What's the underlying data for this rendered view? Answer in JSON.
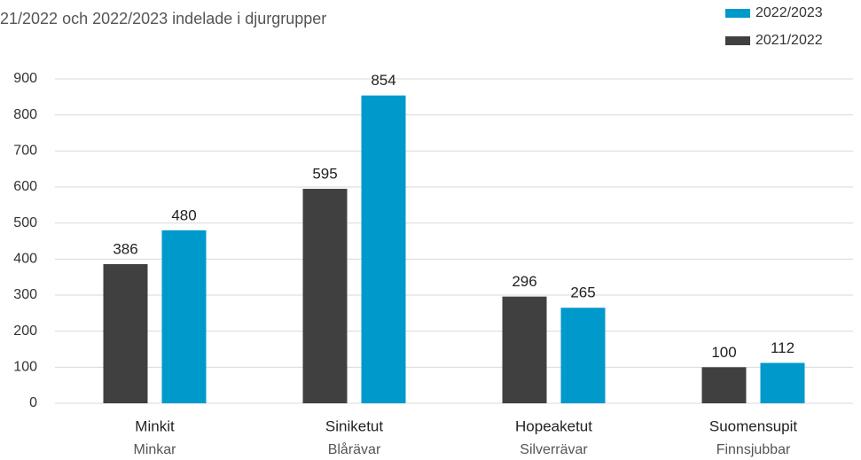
{
  "chart_data": {
    "type": "bar",
    "subtitle": "21/2022 och 2022/2023 indelade i djurgrupper",
    "categories": [
      "Minkit",
      "Siniketut",
      "Hopeaketut",
      "Suomensupit"
    ],
    "category_sublabels": [
      "Minkar",
      "Blårävar",
      "Silverrävar",
      "Finnsjubbar"
    ],
    "series": [
      {
        "name": "2021/2022",
        "color": "#404040",
        "values": [
          386,
          595,
          296,
          100
        ]
      },
      {
        "name": "2022/2023",
        "color": "#0099cc",
        "values": [
          480,
          854,
          265,
          112
        ]
      }
    ],
    "ylim": [
      0,
      900
    ],
    "yticks": [
      0,
      100,
      200,
      300,
      400,
      500,
      600,
      700,
      800,
      900
    ],
    "grid": true,
    "legend": "top-right"
  }
}
